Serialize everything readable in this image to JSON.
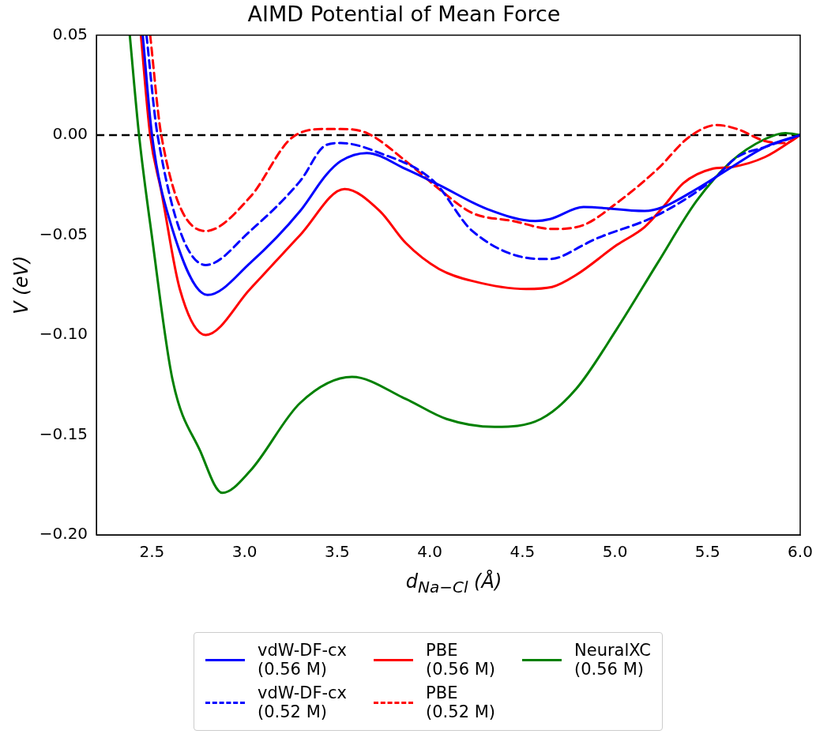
{
  "chart_data": {
    "type": "line",
    "title": "AIMD Potential of Mean Force",
    "xlabel": "d$_{Na−Cl}$ (Å)",
    "ylabel": "V (eV)",
    "xlim": [
      2.2,
      6.0
    ],
    "xticks": [
      {
        "value": 2.5,
        "label": "2.5"
      },
      {
        "value": 3,
        "label": "3.0"
      },
      {
        "value": 3.5,
        "label": "3.5"
      },
      {
        "value": 4,
        "label": "4.0"
      },
      {
        "value": 4.5,
        "label": "4.5"
      },
      {
        "value": 5,
        "label": "5.0"
      },
      {
        "value": 5.5,
        "label": "5.5"
      },
      {
        "value": 6,
        "label": "6.0"
      }
    ],
    "ylim": [
      -0.2,
      0.05
    ],
    "yticks": [
      {
        "value": -0.2,
        "label": "−0.20"
      },
      {
        "value": -0.15,
        "label": "−0.15"
      },
      {
        "value": -0.1,
        "label": "−0.10"
      },
      {
        "value": -0.05,
        "label": "−0.05"
      },
      {
        "value": 0,
        "label": "0.00"
      },
      {
        "value": 0.05,
        "label": "0.05"
      }
    ],
    "grid": false,
    "legend": "bottom",
    "marker": "none",
    "ref_lines": [
      {
        "axis": "y",
        "value": 0,
        "color": "#000000",
        "line_style": "dashed"
      }
    ],
    "series": [
      {
        "name": "vdW-DF-cx\n(0.56 M)",
        "color": "#0000ff",
        "line_style": "solid",
        "x": [
          2.45,
          2.5,
          2.6,
          2.8,
          3.03,
          3.3,
          3.44,
          3.52,
          3.66,
          3.87,
          4.05,
          4.31,
          4.57,
          4.65,
          4.83,
          5.16,
          5.26,
          5.44,
          5.63,
          5.81,
          6.0
        ],
        "values": [
          0.05,
          0,
          -0.044,
          -0.08,
          -0.064,
          -0.038,
          -0.02,
          -0.013,
          -0.009,
          -0.017,
          -0.025,
          -0.037,
          -0.043,
          -0.042,
          -0.036,
          -0.038,
          -0.036,
          -0.027,
          -0.016,
          -0.006,
          0
        ]
      },
      {
        "name": "vdW-DF-cx\n(0.52 M)",
        "color": "#0000ff",
        "line_style": "dashed",
        "x": [
          2.47,
          2.53,
          2.79,
          3.03,
          3.3,
          3.44,
          3.52,
          3.73,
          4.02,
          4.23,
          4.6,
          4.65,
          4.83,
          4.87,
          5.23,
          5.52,
          5.66,
          5.81,
          6.0
        ],
        "values": [
          0.05,
          0,
          -0.065,
          -0.048,
          -0.023,
          -0.005,
          -0.004,
          -0.009,
          -0.023,
          -0.048,
          -0.062,
          -0.062,
          -0.055,
          -0.053,
          -0.04,
          -0.023,
          -0.011,
          -0.006,
          0
        ]
      },
      {
        "name": "PBE\n(0.56 M)",
        "color": "#ff0000",
        "line_style": "solid",
        "x": [
          2.44,
          2.49,
          2.55,
          2.65,
          2.79,
          3.03,
          3.3,
          3.54,
          3.73,
          3.87,
          4.05,
          4.23,
          4.52,
          4.66,
          4.79,
          5.01,
          5.16,
          5.26,
          5.37,
          5.52,
          5.63,
          5.81,
          6.0
        ],
        "values": [
          0.05,
          0,
          -0.028,
          -0.077,
          -0.1,
          -0.077,
          -0.05,
          -0.027,
          -0.038,
          -0.054,
          -0.067,
          -0.073,
          -0.077,
          -0.076,
          -0.07,
          -0.055,
          -0.046,
          -0.036,
          -0.024,
          -0.017,
          -0.016,
          -0.011,
          0
        ]
      },
      {
        "name": "PBE\n(0.52 M)",
        "color": "#ff0000",
        "line_style": "dashed",
        "x": [
          2.49,
          2.55,
          2.79,
          3.03,
          3.26,
          3.44,
          3.52,
          3.66,
          3.87,
          4.05,
          4.23,
          4.45,
          4.66,
          4.83,
          5.01,
          5.23,
          5.4,
          5.55,
          5.66,
          5.81,
          5.92,
          6.0
        ],
        "values": [
          0.05,
          0,
          -0.048,
          -0.031,
          -0.001,
          0.003,
          0.003,
          0.001,
          -0.013,
          -0.027,
          -0.039,
          -0.043,
          -0.047,
          -0.045,
          -0.034,
          -0.017,
          -0.001,
          0.005,
          0.003,
          -0.003,
          -0.004,
          0
        ]
      },
      {
        "name": "NeuralXC\n(0.56 M)",
        "color": "#008000",
        "line_style": "solid",
        "x": [
          2.38,
          2.43,
          2.5,
          2.61,
          2.76,
          2.88,
          3.03,
          3.3,
          3.58,
          3.87,
          4.09,
          4.35,
          4.6,
          4.79,
          5.01,
          5.23,
          5.44,
          5.63,
          5.81,
          5.92,
          6.0
        ],
        "values": [
          0.05,
          0,
          -0.051,
          -0.122,
          -0.158,
          -0.179,
          -0.168,
          -0.134,
          -0.121,
          -0.132,
          -0.142,
          -0.146,
          -0.142,
          -0.127,
          -0.097,
          -0.064,
          -0.033,
          -0.013,
          -0.002,
          0.001,
          0
        ]
      }
    ]
  }
}
